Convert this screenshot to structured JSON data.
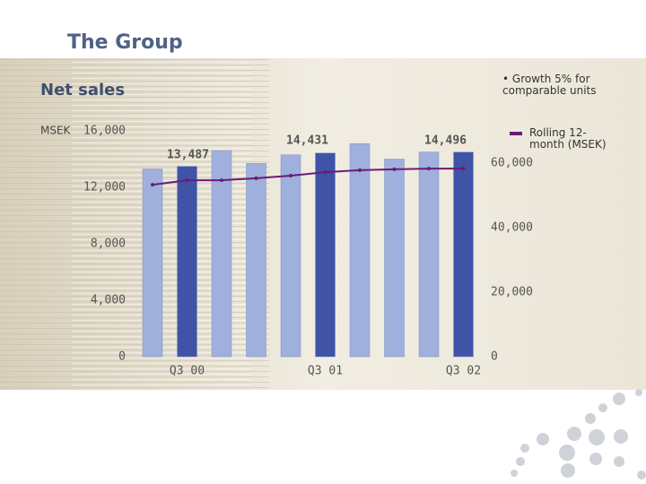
{
  "chart_data": {
    "type": "bar",
    "header": "The Group",
    "title": "Net sales",
    "y_axis_label": "MSEK",
    "annotations": [
      "Growth 5% for comparable units"
    ],
    "categories": [
      null,
      "Q3 00",
      null,
      null,
      null,
      "Q3 01",
      null,
      null,
      null,
      "Q3 02"
    ],
    "series": [
      {
        "values": [
          13300,
          13487,
          14600,
          13700,
          14300,
          14431,
          15100,
          14000,
          14500,
          14496
        ],
        "value_labels": [
          null,
          "13,487",
          null,
          null,
          null,
          "14,431",
          null,
          null,
          null,
          "14,496"
        ],
        "colors": [
          "#9fb0dc",
          "#3f54a6",
          "#9fb0dc",
          "#9fb0dc",
          "#9fb0dc",
          "#3f54a6",
          "#9fb0dc",
          "#9fb0dc",
          "#9fb0dc",
          "#3f54a6"
        ]
      },
      {
        "name": "Rolling 12-month (MSEK)",
        "type": "line",
        "axis": "y2",
        "color": "#6a1b7a",
        "values": [
          53300,
          54700,
          54700,
          55300,
          56100,
          57200,
          57800,
          58100,
          58300,
          58300
        ]
      }
    ],
    "ylim": [
      0,
      16000
    ],
    "yticks": [
      0,
      {
        "value": 4000,
        "label": "4,000"
      },
      {
        "value": 8000,
        "label": "8,000"
      },
      {
        "value": 12000,
        "label": "12,000"
      },
      {
        "value": 16000,
        "label": "16,000"
      }
    ],
    "y2lim": [
      0,
      70000
    ],
    "y2ticks": [
      0,
      {
        "value": 20000,
        "label": "20,000"
      },
      {
        "value": 40000,
        "label": "40,000"
      },
      {
        "value": 60000,
        "label": "60,000"
      }
    ]
  }
}
